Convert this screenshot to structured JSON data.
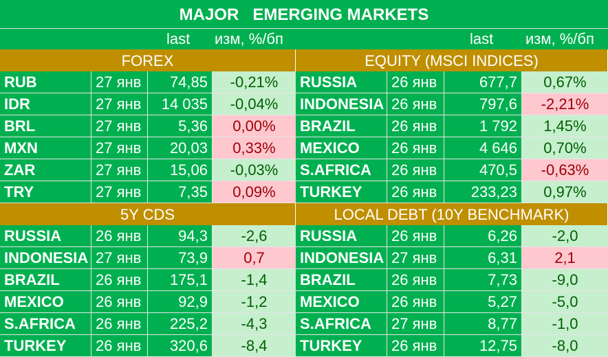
{
  "title": "MAJOR   EMERGING MARKETS",
  "header": {
    "last_label": "last",
    "change_label": "изм, %/бп"
  },
  "sections": {
    "forex": "FOREX",
    "equity": "EQUITY (MSCI INDICES)",
    "cds": "5Y CDS",
    "debt": "LOCAL DEBT (10Y BENCHMARK)"
  },
  "forex": [
    {
      "name": "RUB",
      "date": "27 янв",
      "last": "74,85",
      "change": "-0,21%",
      "tone": "pos"
    },
    {
      "name": "IDR",
      "date": "27 янв",
      "last": "14 035",
      "change": "-0,04%",
      "tone": "pos"
    },
    {
      "name": "BRL",
      "date": "27 янв",
      "last": "5,36",
      "change": "0,00%",
      "tone": "neg"
    },
    {
      "name": "MXN",
      "date": "27 янв",
      "last": "20,03",
      "change": "0,33%",
      "tone": "neg"
    },
    {
      "name": "ZAR",
      "date": "27 янв",
      "last": "15,06",
      "change": "-0,03%",
      "tone": "pos"
    },
    {
      "name": "TRY",
      "date": "27 янв",
      "last": "7,35",
      "change": "0,09%",
      "tone": "neg"
    }
  ],
  "equity": [
    {
      "name": "RUSSIA",
      "date": "26 янв",
      "last": "677,7",
      "change": "0,67%",
      "tone": "pos"
    },
    {
      "name": "INDONESIA",
      "date": "26 янв",
      "last": "797,6",
      "change": "-2,21%",
      "tone": "neg"
    },
    {
      "name": "BRAZIL",
      "date": "26 янв",
      "last": "1 792",
      "change": "1,45%",
      "tone": "pos"
    },
    {
      "name": "MEXICO",
      "date": "26 янв",
      "last": "4 646",
      "change": "0,70%",
      "tone": "pos"
    },
    {
      "name": "S.AFRICA",
      "date": "26 янв",
      "last": "470,5",
      "change": "-0,63%",
      "tone": "neg"
    },
    {
      "name": "TURKEY",
      "date": "26 янв",
      "last": "233,23",
      "change": "0,97%",
      "tone": "pos"
    }
  ],
  "cds": [
    {
      "name": "RUSSIA",
      "date": "26 янв",
      "last": "94,3",
      "change": "-2,6",
      "tone": "pos"
    },
    {
      "name": "INDONESIA",
      "date": "27 янв",
      "last": "73,9",
      "change": "0,7",
      "tone": "neg"
    },
    {
      "name": "BRAZIL",
      "date": "26 янв",
      "last": "175,1",
      "change": "-1,4",
      "tone": "pos"
    },
    {
      "name": "MEXICO",
      "date": "26 янв",
      "last": "92,9",
      "change": "-1,2",
      "tone": "pos"
    },
    {
      "name": "S.AFRICA",
      "date": "26 янв",
      "last": "225,2",
      "change": "-4,3",
      "tone": "pos"
    },
    {
      "name": "TURKEY",
      "date": "26 янв",
      "last": "320,6",
      "change": "-8,4",
      "tone": "pos"
    }
  ],
  "debt": [
    {
      "name": "RUSSIA",
      "date": "26 янв",
      "last": "6,26",
      "change": "-2,0",
      "tone": "pos"
    },
    {
      "name": "INDONESIA",
      "date": "27 янв",
      "last": "6,31",
      "change": "2,1",
      "tone": "neg"
    },
    {
      "name": "BRAZIL",
      "date": "26 янв",
      "last": "7,73",
      "change": "-9,0",
      "tone": "pos"
    },
    {
      "name": "MEXICO",
      "date": "26 янв",
      "last": "5,27",
      "change": "-5,0",
      "tone": "pos"
    },
    {
      "name": "S.AFRICA",
      "date": "27 янв",
      "last": "8,77",
      "change": "-1,0",
      "tone": "pos"
    },
    {
      "name": "TURKEY",
      "date": "26 янв",
      "last": "12,75",
      "change": "-8,0",
      "tone": "pos"
    }
  ]
}
